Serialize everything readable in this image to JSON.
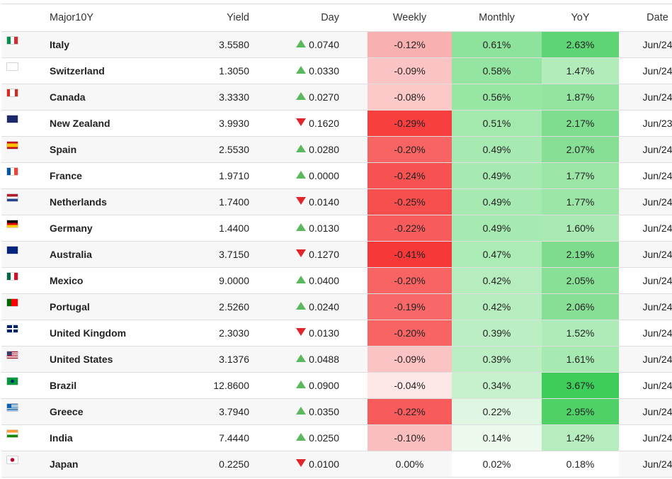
{
  "header": {
    "flag": "",
    "name": "Major10Y",
    "yield": "Yield",
    "day": "Day",
    "weekly": "Weekly",
    "monthly": "Monthly",
    "yoy": "YoY",
    "date": "Date"
  },
  "rows": [
    {
      "name": "Italy",
      "flag": "it-flag-icon",
      "yield": "3.5580",
      "dir": "up",
      "day": "0.0740",
      "weekly": "-0.12%",
      "weekly_color": "#f8b0b0",
      "monthly": "0.61%",
      "monthly_color": "#8ee39c",
      "yoy": "2.63%",
      "yoy_color": "#5ed474",
      "date": "Jun/24"
    },
    {
      "name": "Switzerland",
      "flag": "ch-flag-icon",
      "yield": "1.3050",
      "dir": "up",
      "day": "0.0330",
      "weekly": "-0.09%",
      "weekly_color": "#fbc4c4",
      "monthly": "0.58%",
      "monthly_color": "#95e5a2",
      "yoy": "1.47%",
      "yoy_color": "#b2ecbb",
      "date": "Jun/24"
    },
    {
      "name": "Canada",
      "flag": "ca-flag-icon",
      "yield": "3.3330",
      "dir": "up",
      "day": "0.0270",
      "weekly": "-0.08%",
      "weekly_color": "#fcc8c8",
      "monthly": "0.56%",
      "monthly_color": "#98e6a4",
      "yoy": "1.87%",
      "yoy_color": "#94e4a1",
      "date": "Jun/24"
    },
    {
      "name": "New Zealand",
      "flag": "nz-flag-icon",
      "yield": "3.9930",
      "dir": "down",
      "day": "0.1620",
      "weekly": "-0.29%",
      "weekly_color": "#f73f3f",
      "monthly": "0.51%",
      "monthly_color": "#a3e9ad",
      "yoy": "2.17%",
      "yoy_color": "#7edd8e",
      "date": "Jun/23"
    },
    {
      "name": "Spain",
      "flag": "es-flag-icon",
      "yield": "2.5530",
      "dir": "up",
      "day": "0.0280",
      "weekly": "-0.20%",
      "weekly_color": "#f86464",
      "monthly": "0.49%",
      "monthly_color": "#a7eab1",
      "yoy": "2.07%",
      "yoy_color": "#86df95",
      "date": "Jun/24"
    },
    {
      "name": "France",
      "flag": "fr-flag-icon",
      "yield": "1.9710",
      "dir": "up",
      "day": "0.0000",
      "weekly": "-0.24%",
      "weekly_color": "#f75252",
      "monthly": "0.49%",
      "monthly_color": "#a7eab1",
      "yoy": "1.77%",
      "yoy_color": "#9be6a6",
      "date": "Jun/24"
    },
    {
      "name": "Netherlands",
      "flag": "nl-flag-icon",
      "yield": "1.7400",
      "dir": "down",
      "day": "0.0140",
      "weekly": "-0.25%",
      "weekly_color": "#f74e4e",
      "monthly": "0.49%",
      "monthly_color": "#a7eab1",
      "yoy": "1.77%",
      "yoy_color": "#9be6a6",
      "date": "Jun/24"
    },
    {
      "name": "Germany",
      "flag": "de-flag-icon",
      "yield": "1.4400",
      "dir": "up",
      "day": "0.0130",
      "weekly": "-0.22%",
      "weekly_color": "#f75b5b",
      "monthly": "0.49%",
      "monthly_color": "#a7eab1",
      "yoy": "1.60%",
      "yoy_color": "#a8eab2",
      "date": "Jun/24"
    },
    {
      "name": "Australia",
      "flag": "au-flag-icon",
      "yield": "3.7150",
      "dir": "down",
      "day": "0.1270",
      "weekly": "-0.41%",
      "weekly_color": "#f63838",
      "monthly": "0.47%",
      "monthly_color": "#abebb4",
      "yoy": "2.19%",
      "yoy_color": "#7ddd8d",
      "date": "Jun/24"
    },
    {
      "name": "Mexico",
      "flag": "mx-flag-icon",
      "yield": "9.0000",
      "dir": "up",
      "day": "0.0400",
      "weekly": "-0.20%",
      "weekly_color": "#f86464",
      "monthly": "0.42%",
      "monthly_color": "#b6edbe",
      "yoy": "2.05%",
      "yoy_color": "#88e097",
      "date": "Jun/24"
    },
    {
      "name": "Portugal",
      "flag": "pt-flag-icon",
      "yield": "2.5260",
      "dir": "up",
      "day": "0.0240",
      "weekly": "-0.19%",
      "weekly_color": "#f86868",
      "monthly": "0.42%",
      "monthly_color": "#b6edbe",
      "yoy": "2.06%",
      "yoy_color": "#87df96",
      "date": "Jun/24"
    },
    {
      "name": "United Kingdom",
      "flag": "gb-flag-icon",
      "yield": "2.3030",
      "dir": "down",
      "day": "0.0130",
      "weekly": "-0.20%",
      "weekly_color": "#f86464",
      "monthly": "0.39%",
      "monthly_color": "#bceec3",
      "yoy": "1.52%",
      "yoy_color": "#afebb8",
      "date": "Jun/24"
    },
    {
      "name": "United States",
      "flag": "us-flag-icon",
      "yield": "3.1376",
      "dir": "up",
      "day": "0.0488",
      "weekly": "-0.09%",
      "weekly_color": "#fbc4c4",
      "monthly": "0.39%",
      "monthly_color": "#bceec3",
      "yoy": "1.61%",
      "yoy_color": "#a7eab1",
      "date": "Jun/24"
    },
    {
      "name": "Brazil",
      "flag": "br-flag-icon",
      "yield": "12.8600",
      "dir": "up",
      "day": "0.0900",
      "weekly": "-0.04%",
      "weekly_color": "#fde7e7",
      "monthly": "0.34%",
      "monthly_color": "#c7f1cd",
      "yoy": "3.67%",
      "yoy_color": "#3dcd58",
      "date": "Jun/24"
    },
    {
      "name": "Greece",
      "flag": "gr-flag-icon",
      "yield": "3.7940",
      "dir": "up",
      "day": "0.0350",
      "weekly": "-0.22%",
      "weekly_color": "#f75b5b",
      "monthly": "0.22%",
      "monthly_color": "#dff7e2",
      "yoy": "2.95%",
      "yoy_color": "#4fd168",
      "date": "Jun/24"
    },
    {
      "name": "India",
      "flag": "in-flag-icon",
      "yield": "7.4440",
      "dir": "up",
      "day": "0.0250",
      "weekly": "-0.10%",
      "weekly_color": "#fbbebe",
      "monthly": "0.14%",
      "monthly_color": "#ecfaee",
      "yoy": "1.42%",
      "yoy_color": "#b6edbe",
      "date": "Jun/24"
    },
    {
      "name": "Japan",
      "flag": "jp-flag-icon",
      "yield": "0.2250",
      "dir": "down",
      "day": "0.0100",
      "weekly": "0.00%",
      "weekly_color": "",
      "monthly": "0.02%",
      "monthly_color": "#ffffff",
      "yoy": "0.18%",
      "yoy_color": "#ffffff",
      "date": "Jun/24"
    }
  ]
}
